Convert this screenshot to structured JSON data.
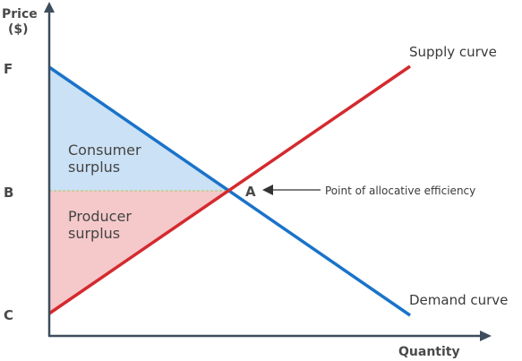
{
  "axes": {
    "y_label_line1": "Price",
    "y_label_line2": "($)",
    "x_label": "Quantity"
  },
  "ticks": {
    "f": "F",
    "b": "B",
    "c": "C"
  },
  "point_a": "A",
  "annotation": "Point of allocative efficiency",
  "areas": {
    "consumer_line1": "Consumer",
    "consumer_line2": "surplus",
    "producer_line1": "Producer",
    "producer_line2": "surplus"
  },
  "curves": {
    "supply": "Supply curve",
    "demand": "Demand curve"
  },
  "colors": {
    "demand": "#1a73c9",
    "supply": "#d42a2f",
    "consumer_fill": "#cbe1f5",
    "producer_fill": "#f5c9ca",
    "axis": "#3d4d5c",
    "equilibrium_dash": "#b9c97a"
  }
}
